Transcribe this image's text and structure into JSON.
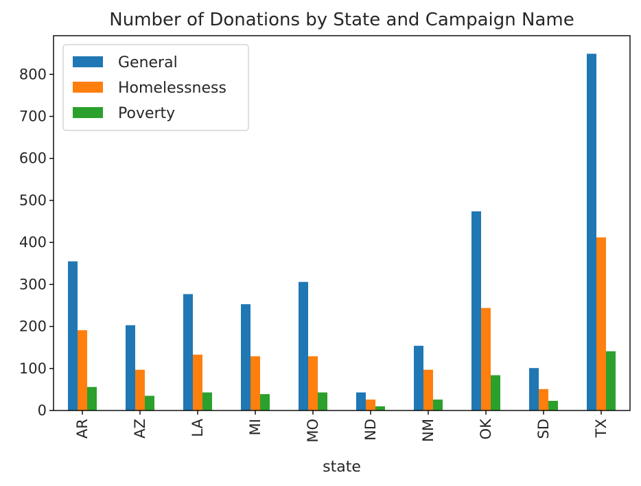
{
  "chart_data": {
    "type": "bar",
    "title": "Number of Donations by State and Campaign Name",
    "xlabel": "state",
    "ylabel": "",
    "categories": [
      "AR",
      "AZ",
      "LA",
      "MI",
      "MO",
      "ND",
      "NM",
      "OK",
      "SD",
      "TX"
    ],
    "series": [
      {
        "name": "General",
        "color": "#1f77b4",
        "values": [
          355,
          203,
          277,
          253,
          306,
          43,
          154,
          474,
          101,
          849
        ]
      },
      {
        "name": "Homelessness",
        "color": "#ff7f0e",
        "values": [
          191,
          97,
          133,
          129,
          129,
          26,
          97,
          244,
          51,
          412
        ]
      },
      {
        "name": "Poverty",
        "color": "#2ca02c",
        "values": [
          56,
          35,
          43,
          39,
          43,
          10,
          26,
          84,
          23,
          141
        ]
      }
    ],
    "ylim": [
      0,
      892
    ],
    "yticks": [
      0,
      100,
      200,
      300,
      400,
      500,
      600,
      700,
      800
    ],
    "grid": false,
    "legend_position": "upper-left"
  }
}
